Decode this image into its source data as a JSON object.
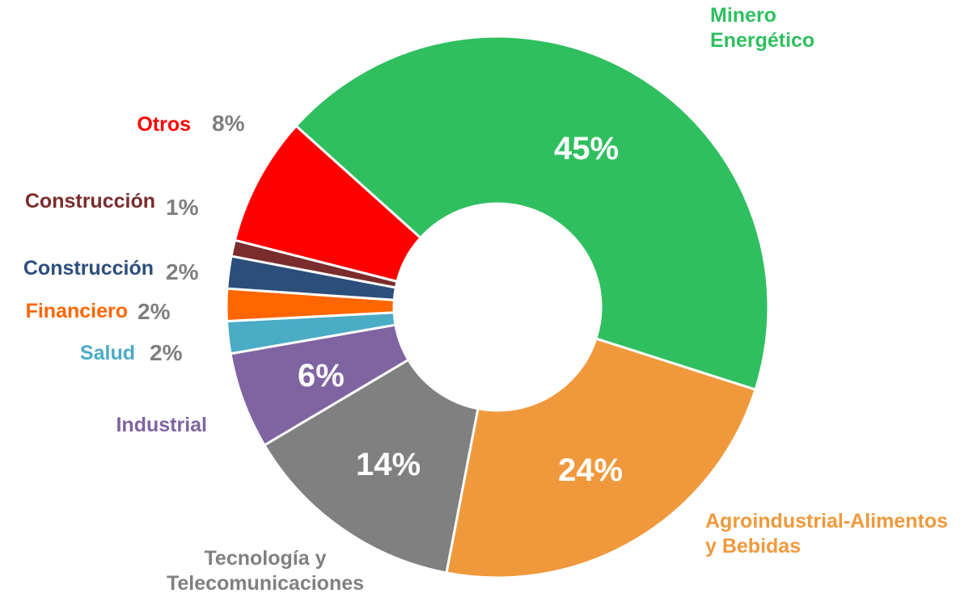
{
  "chart_data": {
    "type": "donut",
    "categories": [
      "Minero Energético",
      "Agroindustrial-Alimentos y Bebidas",
      "Tecnología y Telecomunicaciones",
      "Industrial",
      "Salud",
      "Financiero",
      "Construcción",
      "Construcción",
      "Otros"
    ],
    "values": [
      45,
      24,
      14,
      6,
      2,
      2,
      2,
      1,
      8
    ],
    "value_labels": [
      "45%",
      "24%",
      "14%",
      "6%",
      "2%",
      "2%",
      "2%",
      "1%",
      "8%"
    ],
    "colors": [
      "#2fbf5f",
      "#f0993c",
      "#808080",
      "#8064a2",
      "#4bacc6",
      "#ff6600",
      "#2c4e7a",
      "#7b2c2c",
      "#ff0000"
    ]
  }
}
